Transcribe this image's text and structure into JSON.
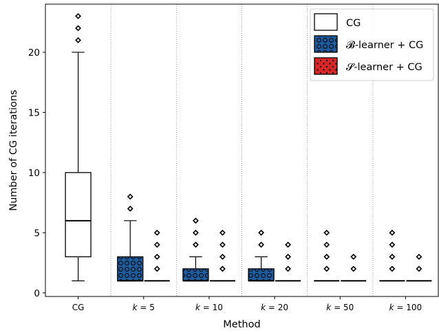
{
  "chart_data": {
    "type": "box",
    "title": "",
    "xlabel": "Method",
    "ylabel": "Number of CG iterations",
    "ylim": [
      -0.3,
      24.0
    ],
    "yticks": [
      0,
      5,
      10,
      15,
      20
    ],
    "grid": "vertical dotted separators between groups",
    "legend": {
      "placement": "top-right",
      "entries": [
        {
          "label": "CG",
          "series": "cg"
        },
        {
          "label": "𝓑-learner + CG",
          "series": "b"
        },
        {
          "label": "𝓢-learner + CG",
          "series": "s"
        }
      ]
    },
    "series_style": {
      "cg": {
        "fill": "#ffffff",
        "pattern": "none"
      },
      "b": {
        "fill": "#1f5a9a",
        "pattern": "circles"
      },
      "s": {
        "fill": "#d62728",
        "pattern": "dots"
      }
    },
    "groups": [
      {
        "label": "CG",
        "boxes": [
          {
            "series": "cg",
            "whislo": 1,
            "q1": 3,
            "med": 6,
            "q3": 10,
            "whishi": 20,
            "fliers": [
              21,
              22,
              23
            ]
          }
        ]
      },
      {
        "label": "k = 5",
        "boxes": [
          {
            "series": "b",
            "whislo": 1,
            "q1": 1,
            "med": 1,
            "q3": 3,
            "whishi": 6,
            "fliers": [
              7,
              8
            ]
          },
          {
            "series": "s",
            "whislo": 1,
            "q1": 1,
            "med": 1,
            "q3": 1,
            "whishi": 1,
            "fliers": [
              2,
              3,
              4,
              5
            ]
          }
        ]
      },
      {
        "label": "k = 10",
        "boxes": [
          {
            "series": "b",
            "whislo": 1,
            "q1": 1,
            "med": 1,
            "q3": 2,
            "whishi": 3,
            "fliers": [
              4,
              5,
              6
            ]
          },
          {
            "series": "s",
            "whislo": 1,
            "q1": 1,
            "med": 1,
            "q3": 1,
            "whishi": 1,
            "fliers": [
              2,
              3,
              4,
              5
            ]
          }
        ]
      },
      {
        "label": "k = 20",
        "boxes": [
          {
            "series": "b",
            "whislo": 1,
            "q1": 1,
            "med": 1,
            "q3": 2,
            "whishi": 3,
            "fliers": [
              4,
              5
            ]
          },
          {
            "series": "s",
            "whislo": 1,
            "q1": 1,
            "med": 1,
            "q3": 1,
            "whishi": 1,
            "fliers": [
              2,
              3,
              4
            ]
          }
        ]
      },
      {
        "label": "k = 50",
        "boxes": [
          {
            "series": "b",
            "whislo": 1,
            "q1": 1,
            "med": 1,
            "q3": 1,
            "whishi": 1,
            "fliers": [
              2,
              3,
              4,
              5
            ]
          },
          {
            "series": "s",
            "whislo": 1,
            "q1": 1,
            "med": 1,
            "q3": 1,
            "whishi": 1,
            "fliers": [
              2,
              3
            ]
          }
        ]
      },
      {
        "label": "k = 100",
        "boxes": [
          {
            "series": "b",
            "whislo": 1,
            "q1": 1,
            "med": 1,
            "q3": 1,
            "whishi": 1,
            "fliers": [
              2,
              3,
              4,
              5
            ]
          },
          {
            "series": "s",
            "whislo": 1,
            "q1": 1,
            "med": 1,
            "q3": 1,
            "whishi": 1,
            "fliers": [
              2,
              3
            ]
          }
        ]
      }
    ]
  }
}
